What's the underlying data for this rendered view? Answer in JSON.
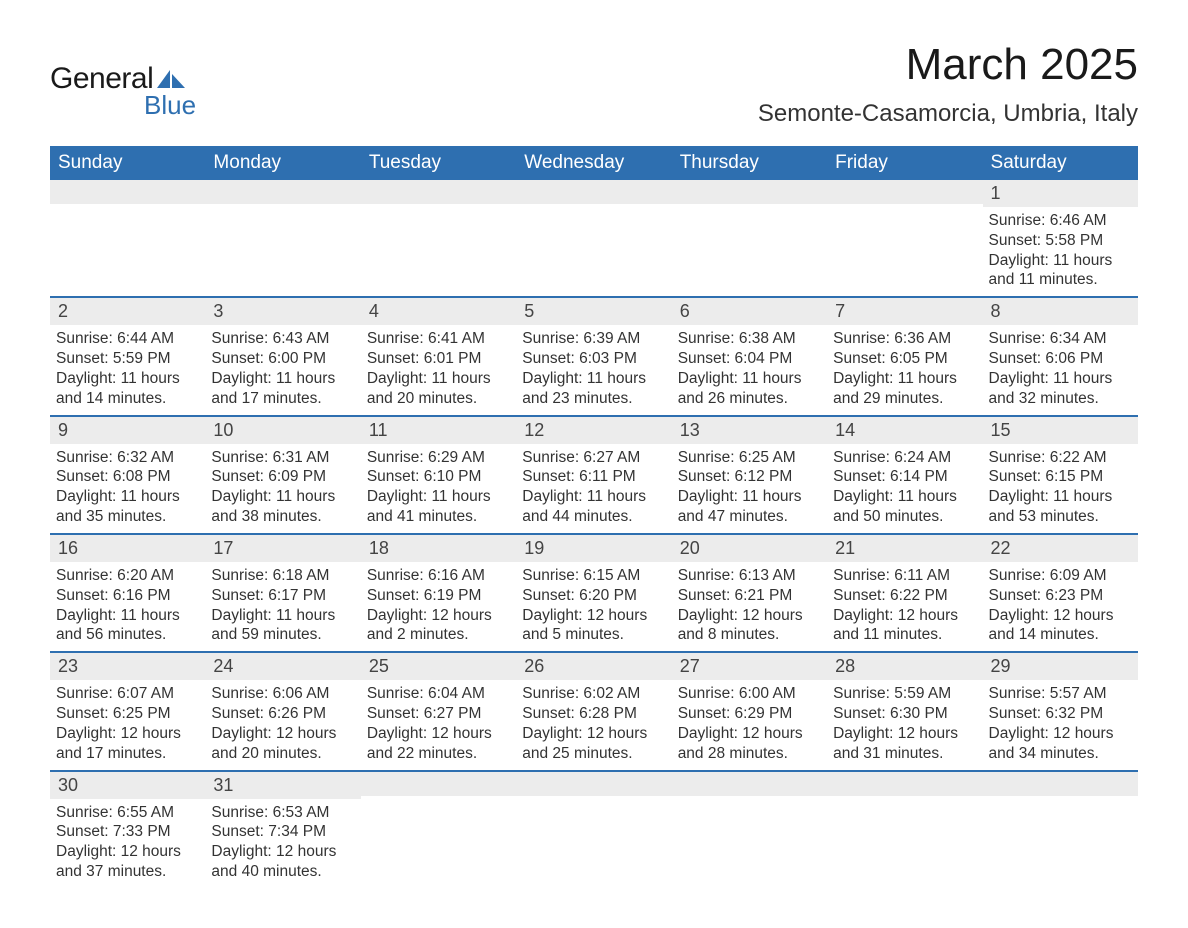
{
  "logo": {
    "text1": "General",
    "text2": "Blue",
    "color": "#2e6fb0"
  },
  "title": "March 2025",
  "location": "Semonte-Casamorcia, Umbria, Italy",
  "colors": {
    "header_bg": "#2e6fb0",
    "header_text": "#ffffff",
    "daynum_bg": "#ececec",
    "row_divider": "#2e6fb0",
    "body_text": "#333333"
  },
  "weekdays": [
    "Sunday",
    "Monday",
    "Tuesday",
    "Wednesday",
    "Thursday",
    "Friday",
    "Saturday"
  ],
  "weeks": [
    [
      {
        "day": "",
        "sunrise": "",
        "sunset": "",
        "daylight": ""
      },
      {
        "day": "",
        "sunrise": "",
        "sunset": "",
        "daylight": ""
      },
      {
        "day": "",
        "sunrise": "",
        "sunset": "",
        "daylight": ""
      },
      {
        "day": "",
        "sunrise": "",
        "sunset": "",
        "daylight": ""
      },
      {
        "day": "",
        "sunrise": "",
        "sunset": "",
        "daylight": ""
      },
      {
        "day": "",
        "sunrise": "",
        "sunset": "",
        "daylight": ""
      },
      {
        "day": "1",
        "sunrise": "Sunrise: 6:46 AM",
        "sunset": "Sunset: 5:58 PM",
        "daylight": "Daylight: 11 hours and 11 minutes."
      }
    ],
    [
      {
        "day": "2",
        "sunrise": "Sunrise: 6:44 AM",
        "sunset": "Sunset: 5:59 PM",
        "daylight": "Daylight: 11 hours and 14 minutes."
      },
      {
        "day": "3",
        "sunrise": "Sunrise: 6:43 AM",
        "sunset": "Sunset: 6:00 PM",
        "daylight": "Daylight: 11 hours and 17 minutes."
      },
      {
        "day": "4",
        "sunrise": "Sunrise: 6:41 AM",
        "sunset": "Sunset: 6:01 PM",
        "daylight": "Daylight: 11 hours and 20 minutes."
      },
      {
        "day": "5",
        "sunrise": "Sunrise: 6:39 AM",
        "sunset": "Sunset: 6:03 PM",
        "daylight": "Daylight: 11 hours and 23 minutes."
      },
      {
        "day": "6",
        "sunrise": "Sunrise: 6:38 AM",
        "sunset": "Sunset: 6:04 PM",
        "daylight": "Daylight: 11 hours and 26 minutes."
      },
      {
        "day": "7",
        "sunrise": "Sunrise: 6:36 AM",
        "sunset": "Sunset: 6:05 PM",
        "daylight": "Daylight: 11 hours and 29 minutes."
      },
      {
        "day": "8",
        "sunrise": "Sunrise: 6:34 AM",
        "sunset": "Sunset: 6:06 PM",
        "daylight": "Daylight: 11 hours and 32 minutes."
      }
    ],
    [
      {
        "day": "9",
        "sunrise": "Sunrise: 6:32 AM",
        "sunset": "Sunset: 6:08 PM",
        "daylight": "Daylight: 11 hours and 35 minutes."
      },
      {
        "day": "10",
        "sunrise": "Sunrise: 6:31 AM",
        "sunset": "Sunset: 6:09 PM",
        "daylight": "Daylight: 11 hours and 38 minutes."
      },
      {
        "day": "11",
        "sunrise": "Sunrise: 6:29 AM",
        "sunset": "Sunset: 6:10 PM",
        "daylight": "Daylight: 11 hours and 41 minutes."
      },
      {
        "day": "12",
        "sunrise": "Sunrise: 6:27 AM",
        "sunset": "Sunset: 6:11 PM",
        "daylight": "Daylight: 11 hours and 44 minutes."
      },
      {
        "day": "13",
        "sunrise": "Sunrise: 6:25 AM",
        "sunset": "Sunset: 6:12 PM",
        "daylight": "Daylight: 11 hours and 47 minutes."
      },
      {
        "day": "14",
        "sunrise": "Sunrise: 6:24 AM",
        "sunset": "Sunset: 6:14 PM",
        "daylight": "Daylight: 11 hours and 50 minutes."
      },
      {
        "day": "15",
        "sunrise": "Sunrise: 6:22 AM",
        "sunset": "Sunset: 6:15 PM",
        "daylight": "Daylight: 11 hours and 53 minutes."
      }
    ],
    [
      {
        "day": "16",
        "sunrise": "Sunrise: 6:20 AM",
        "sunset": "Sunset: 6:16 PM",
        "daylight": "Daylight: 11 hours and 56 minutes."
      },
      {
        "day": "17",
        "sunrise": "Sunrise: 6:18 AM",
        "sunset": "Sunset: 6:17 PM",
        "daylight": "Daylight: 11 hours and 59 minutes."
      },
      {
        "day": "18",
        "sunrise": "Sunrise: 6:16 AM",
        "sunset": "Sunset: 6:19 PM",
        "daylight": "Daylight: 12 hours and 2 minutes."
      },
      {
        "day": "19",
        "sunrise": "Sunrise: 6:15 AM",
        "sunset": "Sunset: 6:20 PM",
        "daylight": "Daylight: 12 hours and 5 minutes."
      },
      {
        "day": "20",
        "sunrise": "Sunrise: 6:13 AM",
        "sunset": "Sunset: 6:21 PM",
        "daylight": "Daylight: 12 hours and 8 minutes."
      },
      {
        "day": "21",
        "sunrise": "Sunrise: 6:11 AM",
        "sunset": "Sunset: 6:22 PM",
        "daylight": "Daylight: 12 hours and 11 minutes."
      },
      {
        "day": "22",
        "sunrise": "Sunrise: 6:09 AM",
        "sunset": "Sunset: 6:23 PM",
        "daylight": "Daylight: 12 hours and 14 minutes."
      }
    ],
    [
      {
        "day": "23",
        "sunrise": "Sunrise: 6:07 AM",
        "sunset": "Sunset: 6:25 PM",
        "daylight": "Daylight: 12 hours and 17 minutes."
      },
      {
        "day": "24",
        "sunrise": "Sunrise: 6:06 AM",
        "sunset": "Sunset: 6:26 PM",
        "daylight": "Daylight: 12 hours and 20 minutes."
      },
      {
        "day": "25",
        "sunrise": "Sunrise: 6:04 AM",
        "sunset": "Sunset: 6:27 PM",
        "daylight": "Daylight: 12 hours and 22 minutes."
      },
      {
        "day": "26",
        "sunrise": "Sunrise: 6:02 AM",
        "sunset": "Sunset: 6:28 PM",
        "daylight": "Daylight: 12 hours and 25 minutes."
      },
      {
        "day": "27",
        "sunrise": "Sunrise: 6:00 AM",
        "sunset": "Sunset: 6:29 PM",
        "daylight": "Daylight: 12 hours and 28 minutes."
      },
      {
        "day": "28",
        "sunrise": "Sunrise: 5:59 AM",
        "sunset": "Sunset: 6:30 PM",
        "daylight": "Daylight: 12 hours and 31 minutes."
      },
      {
        "day": "29",
        "sunrise": "Sunrise: 5:57 AM",
        "sunset": "Sunset: 6:32 PM",
        "daylight": "Daylight: 12 hours and 34 minutes."
      }
    ],
    [
      {
        "day": "30",
        "sunrise": "Sunrise: 6:55 AM",
        "sunset": "Sunset: 7:33 PM",
        "daylight": "Daylight: 12 hours and 37 minutes."
      },
      {
        "day": "31",
        "sunrise": "Sunrise: 6:53 AM",
        "sunset": "Sunset: 7:34 PM",
        "daylight": "Daylight: 12 hours and 40 minutes."
      },
      {
        "day": "",
        "sunrise": "",
        "sunset": "",
        "daylight": ""
      },
      {
        "day": "",
        "sunrise": "",
        "sunset": "",
        "daylight": ""
      },
      {
        "day": "",
        "sunrise": "",
        "sunset": "",
        "daylight": ""
      },
      {
        "day": "",
        "sunrise": "",
        "sunset": "",
        "daylight": ""
      },
      {
        "day": "",
        "sunrise": "",
        "sunset": "",
        "daylight": ""
      }
    ]
  ]
}
